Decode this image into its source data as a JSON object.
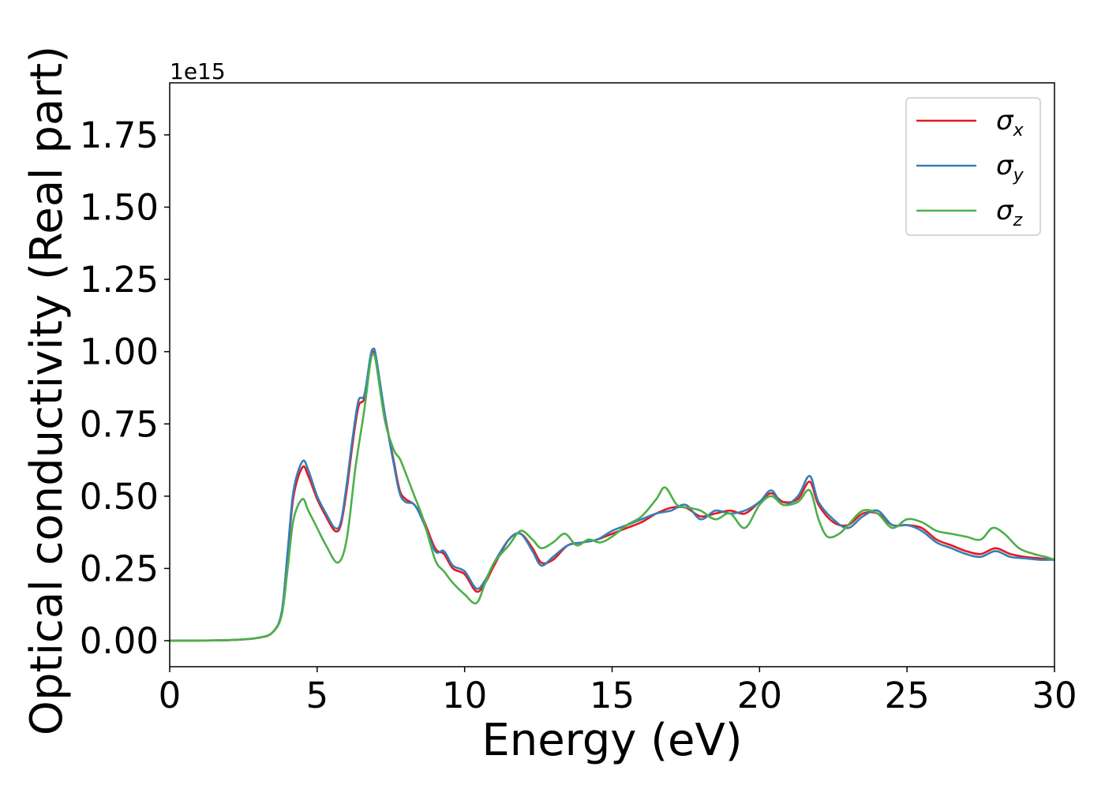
{
  "chart_data": {
    "type": "line",
    "xlabel": "Energy (eV)",
    "ylabel": "Optical conductivity (Real part)",
    "y_offset_label": "1e15",
    "xlim": [
      0,
      30
    ],
    "ylim": [
      -0.09,
      1.93
    ],
    "xticks": [
      0,
      5,
      10,
      15,
      20,
      25,
      30
    ],
    "yticks": [
      0.0,
      0.25,
      0.5,
      0.75,
      1.0,
      1.25,
      1.5,
      1.75
    ],
    "ytick_labels": [
      "0.00",
      "0.25",
      "0.50",
      "0.75",
      "1.00",
      "1.25",
      "1.50",
      "1.75"
    ],
    "grid": false,
    "legend_position": "top-right",
    "series": [
      {
        "name": "σx",
        "color": "#e41a1c",
        "points": [
          [
            0,
            0
          ],
          [
            2,
            0.002
          ],
          [
            3,
            0.01
          ],
          [
            3.5,
            0.03
          ],
          [
            3.8,
            0.1
          ],
          [
            4.0,
            0.3
          ],
          [
            4.2,
            0.5
          ],
          [
            4.5,
            0.6
          ],
          [
            4.7,
            0.57
          ],
          [
            5.0,
            0.49
          ],
          [
            5.3,
            0.43
          ],
          [
            5.6,
            0.38
          ],
          [
            5.8,
            0.4
          ],
          [
            6.0,
            0.52
          ],
          [
            6.2,
            0.68
          ],
          [
            6.4,
            0.81
          ],
          [
            6.6,
            0.84
          ],
          [
            6.8,
            0.97
          ],
          [
            6.9,
            1.0
          ],
          [
            7.0,
            0.97
          ],
          [
            7.3,
            0.78
          ],
          [
            7.6,
            0.62
          ],
          [
            7.8,
            0.52
          ],
          [
            8.0,
            0.49
          ],
          [
            8.3,
            0.47
          ],
          [
            8.6,
            0.42
          ],
          [
            9.0,
            0.32
          ],
          [
            9.3,
            0.3
          ],
          [
            9.6,
            0.25
          ],
          [
            10.0,
            0.23
          ],
          [
            10.4,
            0.17
          ],
          [
            10.7,
            0.2
          ],
          [
            11.0,
            0.26
          ],
          [
            11.5,
            0.35
          ],
          [
            11.9,
            0.37
          ],
          [
            12.3,
            0.32
          ],
          [
            12.6,
            0.27
          ],
          [
            13.0,
            0.28
          ],
          [
            13.5,
            0.33
          ],
          [
            14.0,
            0.34
          ],
          [
            14.5,
            0.35
          ],
          [
            15.0,
            0.37
          ],
          [
            15.5,
            0.39
          ],
          [
            16.0,
            0.41
          ],
          [
            16.5,
            0.44
          ],
          [
            17.0,
            0.46
          ],
          [
            17.5,
            0.46
          ],
          [
            18.0,
            0.43
          ],
          [
            18.5,
            0.44
          ],
          [
            19.0,
            0.45
          ],
          [
            19.5,
            0.44
          ],
          [
            20.0,
            0.48
          ],
          [
            20.4,
            0.51
          ],
          [
            20.8,
            0.48
          ],
          [
            21.3,
            0.49
          ],
          [
            21.7,
            0.55
          ],
          [
            22.0,
            0.47
          ],
          [
            22.5,
            0.41
          ],
          [
            23.0,
            0.4
          ],
          [
            23.5,
            0.44
          ],
          [
            24.0,
            0.44
          ],
          [
            24.5,
            0.4
          ],
          [
            25.0,
            0.4
          ],
          [
            25.5,
            0.39
          ],
          [
            26.0,
            0.35
          ],
          [
            26.5,
            0.33
          ],
          [
            27.0,
            0.31
          ],
          [
            27.5,
            0.3
          ],
          [
            28.0,
            0.32
          ],
          [
            28.5,
            0.3
          ],
          [
            29.0,
            0.29
          ],
          [
            29.5,
            0.285
          ],
          [
            30.0,
            0.28
          ]
        ]
      },
      {
        "name": "σy",
        "color": "#377eb8",
        "points": [
          [
            0,
            0
          ],
          [
            2,
            0.002
          ],
          [
            3,
            0.01
          ],
          [
            3.5,
            0.03
          ],
          [
            3.8,
            0.1
          ],
          [
            4.0,
            0.31
          ],
          [
            4.2,
            0.52
          ],
          [
            4.5,
            0.62
          ],
          [
            4.7,
            0.59
          ],
          [
            5.0,
            0.5
          ],
          [
            5.3,
            0.44
          ],
          [
            5.6,
            0.39
          ],
          [
            5.8,
            0.41
          ],
          [
            6.0,
            0.54
          ],
          [
            6.2,
            0.7
          ],
          [
            6.4,
            0.83
          ],
          [
            6.6,
            0.85
          ],
          [
            6.8,
            0.98
          ],
          [
            6.9,
            1.01
          ],
          [
            7.0,
            0.98
          ],
          [
            7.3,
            0.78
          ],
          [
            7.6,
            0.61
          ],
          [
            7.8,
            0.51
          ],
          [
            8.0,
            0.48
          ],
          [
            8.3,
            0.47
          ],
          [
            8.6,
            0.41
          ],
          [
            9.0,
            0.31
          ],
          [
            9.3,
            0.31
          ],
          [
            9.6,
            0.26
          ],
          [
            10.0,
            0.24
          ],
          [
            10.4,
            0.18
          ],
          [
            10.7,
            0.21
          ],
          [
            11.0,
            0.27
          ],
          [
            11.5,
            0.35
          ],
          [
            11.9,
            0.37
          ],
          [
            12.3,
            0.31
          ],
          [
            12.6,
            0.26
          ],
          [
            13.0,
            0.29
          ],
          [
            13.5,
            0.33
          ],
          [
            14.0,
            0.34
          ],
          [
            14.5,
            0.35
          ],
          [
            15.0,
            0.38
          ],
          [
            15.5,
            0.4
          ],
          [
            16.0,
            0.42
          ],
          [
            16.5,
            0.44
          ],
          [
            17.0,
            0.45
          ],
          [
            17.5,
            0.47
          ],
          [
            18.0,
            0.42
          ],
          [
            18.5,
            0.45
          ],
          [
            19.0,
            0.44
          ],
          [
            19.5,
            0.45
          ],
          [
            20.0,
            0.48
          ],
          [
            20.4,
            0.52
          ],
          [
            20.8,
            0.47
          ],
          [
            21.3,
            0.5
          ],
          [
            21.7,
            0.57
          ],
          [
            22.0,
            0.48
          ],
          [
            22.5,
            0.42
          ],
          [
            23.0,
            0.39
          ],
          [
            23.5,
            0.43
          ],
          [
            24.0,
            0.45
          ],
          [
            24.5,
            0.4
          ],
          [
            25.0,
            0.4
          ],
          [
            25.5,
            0.38
          ],
          [
            26.0,
            0.34
          ],
          [
            26.5,
            0.32
          ],
          [
            27.0,
            0.3
          ],
          [
            27.5,
            0.29
          ],
          [
            28.0,
            0.31
          ],
          [
            28.5,
            0.29
          ],
          [
            29.0,
            0.285
          ],
          [
            29.5,
            0.28
          ],
          [
            30.0,
            0.28
          ]
        ]
      },
      {
        "name": "σz",
        "color": "#4daf4a",
        "points": [
          [
            0,
            0
          ],
          [
            2,
            0.002
          ],
          [
            3,
            0.01
          ],
          [
            3.5,
            0.03
          ],
          [
            3.8,
            0.09
          ],
          [
            4.0,
            0.25
          ],
          [
            4.2,
            0.42
          ],
          [
            4.5,
            0.49
          ],
          [
            4.7,
            0.45
          ],
          [
            5.0,
            0.39
          ],
          [
            5.3,
            0.33
          ],
          [
            5.7,
            0.27
          ],
          [
            6.0,
            0.35
          ],
          [
            6.3,
            0.6
          ],
          [
            6.6,
            0.8
          ],
          [
            6.8,
            0.96
          ],
          [
            6.9,
            0.99
          ],
          [
            7.0,
            0.96
          ],
          [
            7.3,
            0.76
          ],
          [
            7.6,
            0.66
          ],
          [
            7.8,
            0.63
          ],
          [
            8.0,
            0.58
          ],
          [
            8.3,
            0.5
          ],
          [
            8.6,
            0.42
          ],
          [
            9.0,
            0.28
          ],
          [
            9.3,
            0.24
          ],
          [
            9.6,
            0.2
          ],
          [
            10.0,
            0.16
          ],
          [
            10.4,
            0.13
          ],
          [
            10.7,
            0.2
          ],
          [
            11.0,
            0.27
          ],
          [
            11.5,
            0.33
          ],
          [
            11.9,
            0.38
          ],
          [
            12.3,
            0.35
          ],
          [
            12.6,
            0.32
          ],
          [
            13.0,
            0.34
          ],
          [
            13.4,
            0.37
          ],
          [
            13.8,
            0.33
          ],
          [
            14.2,
            0.35
          ],
          [
            14.6,
            0.34
          ],
          [
            15.0,
            0.36
          ],
          [
            15.5,
            0.4
          ],
          [
            16.0,
            0.43
          ],
          [
            16.5,
            0.49
          ],
          [
            16.8,
            0.53
          ],
          [
            17.2,
            0.47
          ],
          [
            17.6,
            0.46
          ],
          [
            18.0,
            0.45
          ],
          [
            18.5,
            0.42
          ],
          [
            19.0,
            0.44
          ],
          [
            19.5,
            0.39
          ],
          [
            20.0,
            0.47
          ],
          [
            20.4,
            0.5
          ],
          [
            20.8,
            0.47
          ],
          [
            21.3,
            0.48
          ],
          [
            21.7,
            0.52
          ],
          [
            22.0,
            0.42
          ],
          [
            22.3,
            0.36
          ],
          [
            22.7,
            0.37
          ],
          [
            23.0,
            0.4
          ],
          [
            23.5,
            0.45
          ],
          [
            24.0,
            0.44
          ],
          [
            24.5,
            0.39
          ],
          [
            25.0,
            0.42
          ],
          [
            25.5,
            0.41
          ],
          [
            26.0,
            0.38
          ],
          [
            26.5,
            0.37
          ],
          [
            27.0,
            0.36
          ],
          [
            27.5,
            0.35
          ],
          [
            27.9,
            0.39
          ],
          [
            28.3,
            0.37
          ],
          [
            28.8,
            0.32
          ],
          [
            29.3,
            0.3
          ],
          [
            29.7,
            0.29
          ],
          [
            30.0,
            0.28
          ]
        ]
      }
    ]
  }
}
